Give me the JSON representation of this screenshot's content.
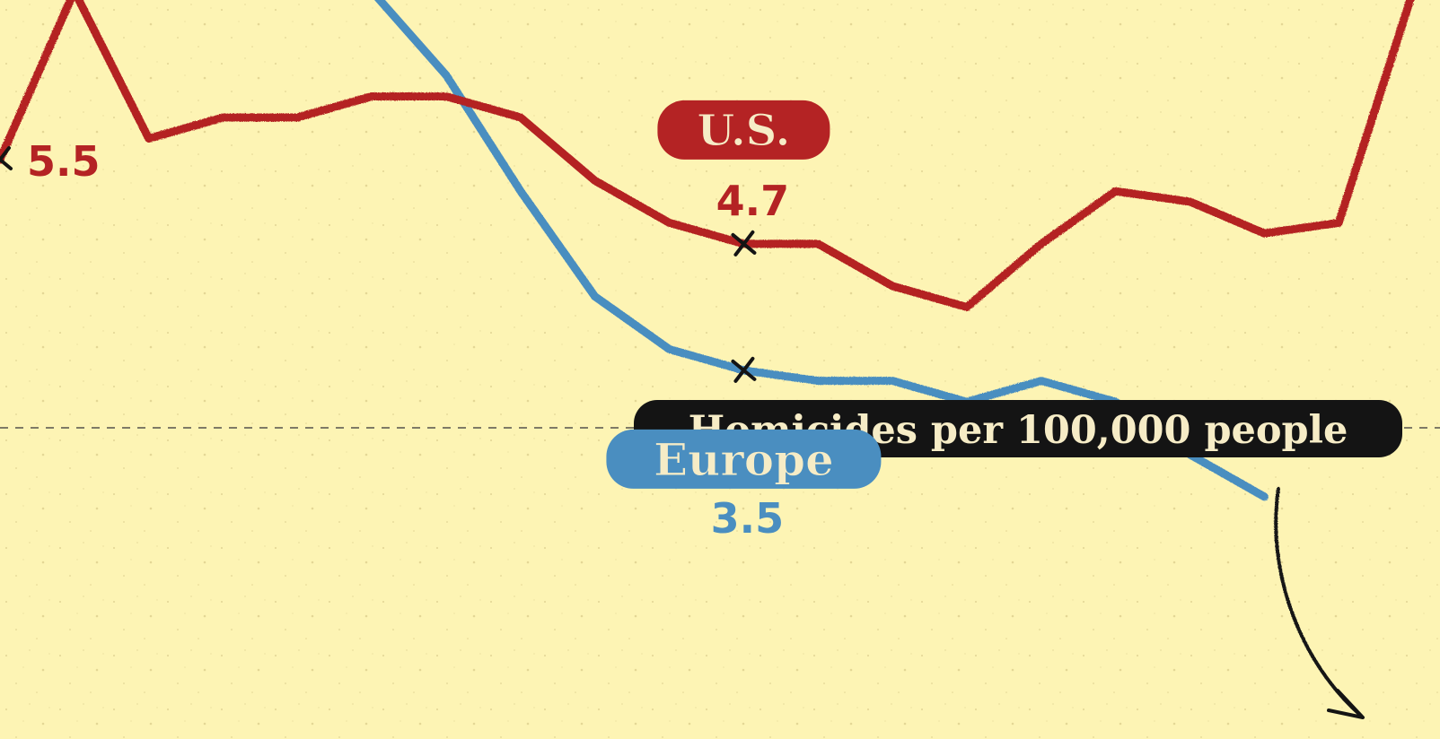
{
  "colors": {
    "background": "#fdf4b4",
    "us": "#b42324",
    "europe": "#4a8ec0",
    "dark": "#141414",
    "pill_text": "#f6ecc6",
    "dash": "#7e7a66"
  },
  "chart_data": {
    "type": "line",
    "title": "",
    "xlabel": "",
    "ylabel": "",
    "grid": false,
    "unit_label": "Homicides per 100,000 people",
    "ylim": [
      0,
      7.1
    ],
    "series": [
      {
        "name": "U.S.",
        "color": "#b42324",
        "x": [
          0,
          1,
          2,
          3,
          4,
          5,
          6,
          7,
          8,
          9,
          10,
          11,
          12,
          13,
          14,
          15,
          16,
          17,
          18,
          19
        ],
        "values": [
          5.5,
          7.1,
          5.7,
          5.9,
          5.9,
          6.1,
          6.1,
          5.9,
          5.3,
          4.9,
          4.7,
          4.7,
          4.3,
          4.1,
          4.7,
          5.2,
          5.1,
          4.8,
          4.9,
          7.1
        ]
      },
      {
        "name": "Europe",
        "color": "#4a8ec0",
        "x": [
          5,
          6,
          7,
          8,
          9,
          10,
          11,
          12,
          13,
          14,
          15,
          16,
          17
        ],
        "values": [
          7.1,
          6.3,
          5.2,
          4.2,
          3.7,
          3.5,
          3.4,
          3.4,
          3.2,
          3.4,
          3.2,
          2.7,
          2.3
        ]
      }
    ],
    "annotations": [
      {
        "series": "U.S.",
        "label": "U.S.",
        "value_label": "4.7",
        "x": 10,
        "y": 4.7
      },
      {
        "series": "U.S.",
        "label": "",
        "value_label": "5.5",
        "x": 0,
        "y": 5.5
      },
      {
        "series": "Europe",
        "label": "Europe",
        "value_label": "3.5",
        "x": 10,
        "y": 3.5
      }
    ]
  }
}
